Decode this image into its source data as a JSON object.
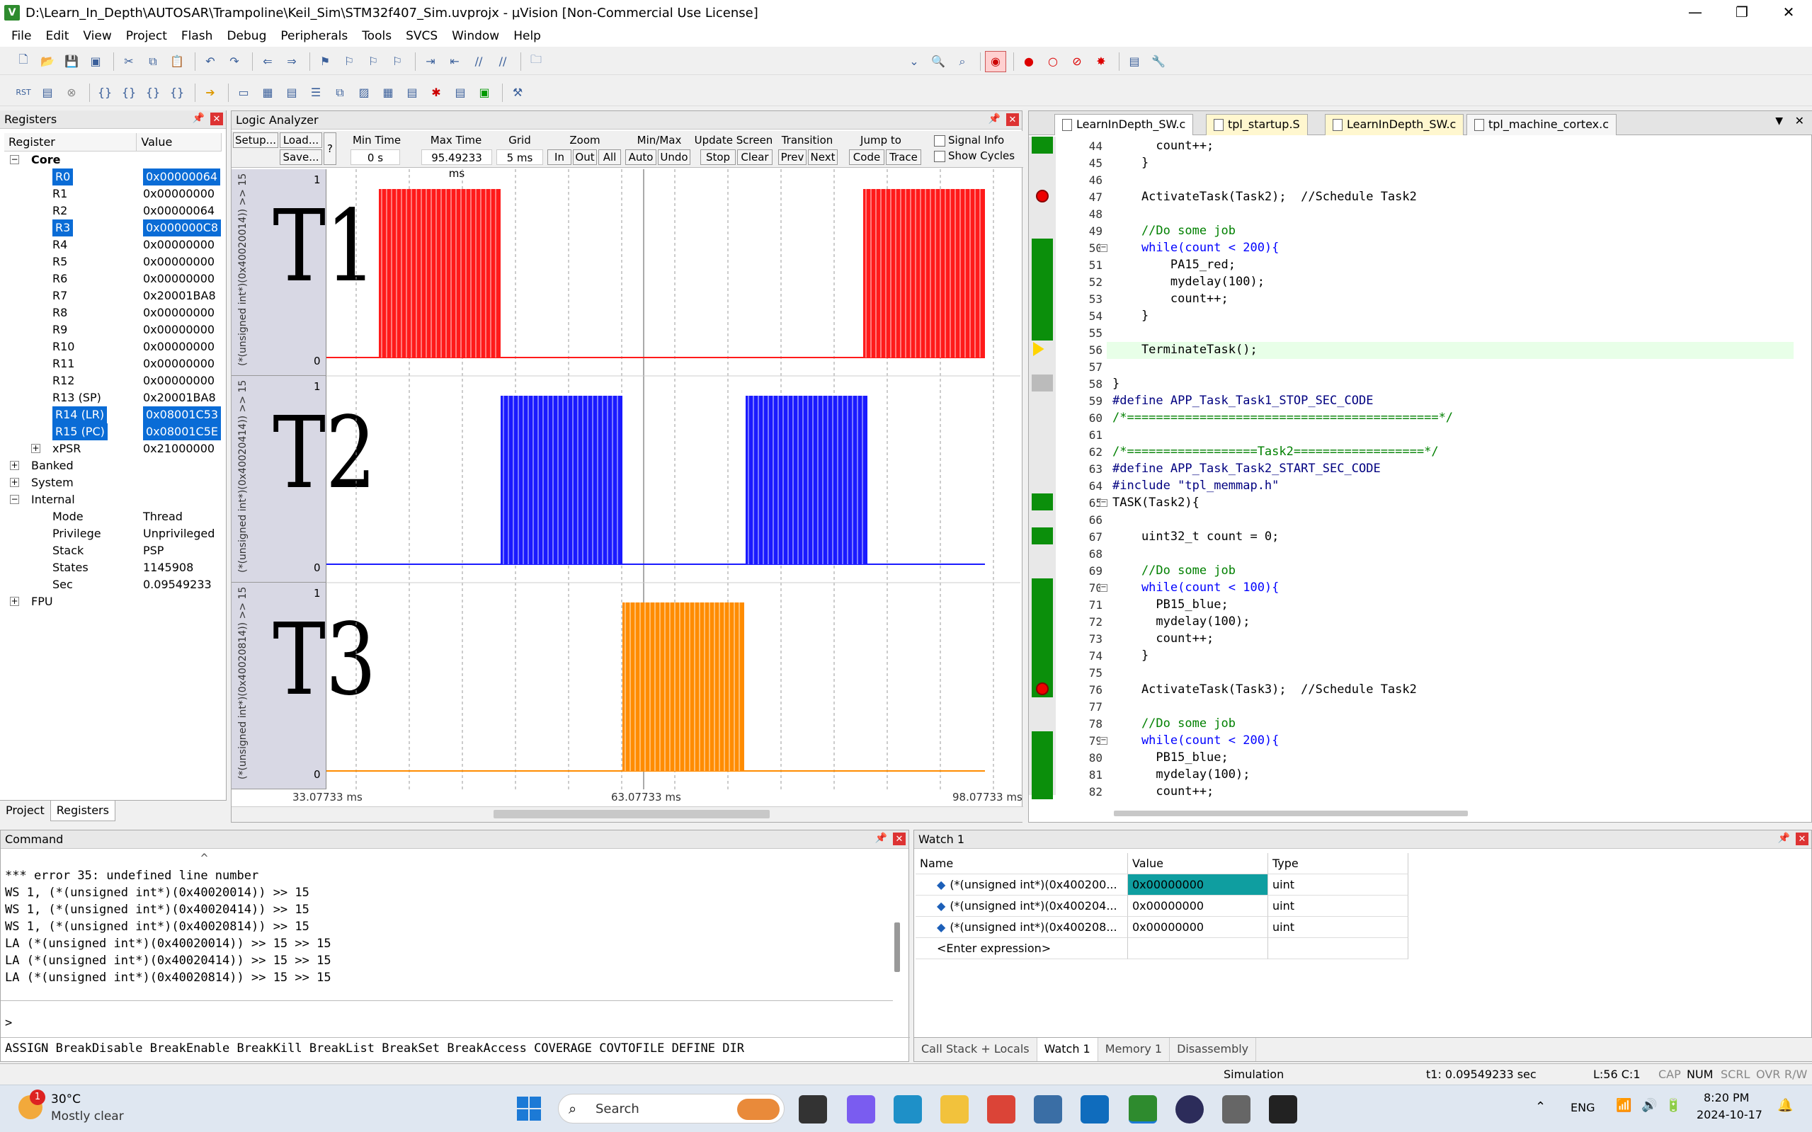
{
  "window": {
    "title": "D:\\Learn_In_Depth\\AUTOSAR\\Trampoline\\Keil_Sim\\STM32f407_Sim.uvprojx - µVision  [Non-Commercial Use License]",
    "minimize": "—",
    "maximize": "❐",
    "close": "✕"
  },
  "menu": [
    "File",
    "Edit",
    "View",
    "Project",
    "Flash",
    "Debug",
    "Peripherals",
    "Tools",
    "SVCS",
    "Window",
    "Help"
  ],
  "registers": {
    "title": "Registers",
    "col_register": "Register",
    "col_value": "Value",
    "core_label": "Core",
    "rows": [
      {
        "name": "R0",
        "value": "0x00000064",
        "selected": true
      },
      {
        "name": "R1",
        "value": "0x00000000",
        "selected": false
      },
      {
        "name": "R2",
        "value": "0x00000064",
        "selected": false
      },
      {
        "name": "R3",
        "value": "0x000000C8",
        "selected": true
      },
      {
        "name": "R4",
        "value": "0x00000000",
        "selected": false
      },
      {
        "name": "R5",
        "value": "0x00000000",
        "selected": false
      },
      {
        "name": "R6",
        "value": "0x00000000",
        "selected": false
      },
      {
        "name": "R7",
        "value": "0x20001BA8",
        "selected": false
      },
      {
        "name": "R8",
        "value": "0x00000000",
        "selected": false
      },
      {
        "name": "R9",
        "value": "0x00000000",
        "selected": false
      },
      {
        "name": "R10",
        "value": "0x00000000",
        "selected": false
      },
      {
        "name": "R11",
        "value": "0x00000000",
        "selected": false
      },
      {
        "name": "R12",
        "value": "0x00000000",
        "selected": false
      },
      {
        "name": "R13 (SP)",
        "value": "0x20001BA8",
        "selected": false
      },
      {
        "name": "R14 (LR)",
        "value": "0x08001C53",
        "selected": true
      },
      {
        "name": "R15 (PC)",
        "value": "0x08001C5E",
        "selected": true
      },
      {
        "name": "xPSR",
        "value": "0x21000000",
        "selected": false
      }
    ],
    "groups": [
      "Banked",
      "System",
      "Internal"
    ],
    "internal": [
      {
        "name": "Mode",
        "value": "Thread"
      },
      {
        "name": "Privilege",
        "value": "Unprivileged"
      },
      {
        "name": "Stack",
        "value": "PSP"
      },
      {
        "name": "States",
        "value": "1145908"
      },
      {
        "name": "Sec",
        "value": "0.09549233"
      }
    ],
    "fpu_label": "FPU",
    "tab_project": "Project",
    "tab_registers": "Registers"
  },
  "logic_analyzer": {
    "title": "Logic Analyzer",
    "setup": "Setup...",
    "load": "Load...",
    "save": "Save...",
    "help": "?",
    "min_time_label": "Min Time",
    "min_time": "0 s",
    "max_time_label": "Max Time",
    "max_time": "95.49233 ms",
    "grid_label": "Grid",
    "grid": "5 ms",
    "zoom_label": "Zoom",
    "zoom_in": "In",
    "zoom_out": "Out",
    "zoom_all": "All",
    "minmax_label": "Min/Max",
    "auto": "Auto",
    "undo": "Undo",
    "update_label": "Update Screen",
    "stop": "Stop",
    "clear": "Clear",
    "transition_label": "Transition",
    "prev": "Prev",
    "next": "Next",
    "jump_label": "Jump to",
    "code": "Code",
    "trace": "Trace",
    "signal_info": "Signal Info",
    "show_cycles": "Show Cycles",
    "signals": [
      {
        "label": "(*(unsigned int*)(0x40020014)) >> 15",
        "color": "#ff1a1a",
        "hi": "1",
        "lo": "0",
        "handwritten": "T1"
      },
      {
        "label": "(*(unsigned int*)(0x40020414)) >> 15",
        "color": "#1a1aff",
        "hi": "1",
        "lo": "0",
        "handwritten": "T2"
      },
      {
        "label": "(*(unsigned int*)(0x40020814)) >> 15",
        "color": "#ff8c00",
        "hi": "1",
        "lo": "0",
        "handwritten": "T3"
      }
    ],
    "axis_left": "33.07733 ms",
    "axis_mid": "63.07733 ms",
    "axis_right": "98.07733 ms"
  },
  "editor": {
    "tabs": [
      {
        "label": "LearnInDepth_SW.c",
        "active": true,
        "yellow": false
      },
      {
        "label": "tpl_startup.S",
        "active": false,
        "yellow": true
      },
      {
        "label": "LearnInDepth_SW.c",
        "active": false,
        "yellow": true
      },
      {
        "label": "tpl_machine_cortex.c",
        "active": false,
        "yellow": false
      }
    ],
    "lines": [
      {
        "n": "44",
        "t": "      count++;"
      },
      {
        "n": "45",
        "t": "    }"
      },
      {
        "n": "46",
        "t": ""
      },
      {
        "n": "47",
        "t": "    ActivateTask(Task2);  //Schedule Task2"
      },
      {
        "n": "48",
        "t": ""
      },
      {
        "n": "49",
        "t": "    //Do some job"
      },
      {
        "n": "50",
        "t": "    while(count < 200){"
      },
      {
        "n": "51",
        "t": "        PA15_red;"
      },
      {
        "n": "52",
        "t": "        mydelay(100);"
      },
      {
        "n": "53",
        "t": "        count++;"
      },
      {
        "n": "54",
        "t": "    }"
      },
      {
        "n": "55",
        "t": ""
      },
      {
        "n": "56",
        "t": "    TerminateTask();"
      },
      {
        "n": "57",
        "t": ""
      },
      {
        "n": "58",
        "t": "}"
      },
      {
        "n": "59",
        "t": "#define APP_Task_Task1_STOP_SEC_CODE"
      },
      {
        "n": "60",
        "t": "/*===========================================*/"
      },
      {
        "n": "61",
        "t": ""
      },
      {
        "n": "62",
        "t": "/*==================Task2==================*/"
      },
      {
        "n": "63",
        "t": "#define APP_Task_Task2_START_SEC_CODE"
      },
      {
        "n": "64",
        "t": "#include \"tpl_memmap.h\""
      },
      {
        "n": "65",
        "t": "TASK(Task2){"
      },
      {
        "n": "66",
        "t": ""
      },
      {
        "n": "67",
        "t": "    uint32_t count = 0;"
      },
      {
        "n": "68",
        "t": ""
      },
      {
        "n": "69",
        "t": "    //Do some job"
      },
      {
        "n": "70",
        "t": "    while(count < 100){"
      },
      {
        "n": "71",
        "t": "      PB15_blue;"
      },
      {
        "n": "72",
        "t": "      mydelay(100);"
      },
      {
        "n": "73",
        "t": "      count++;"
      },
      {
        "n": "74",
        "t": "    }"
      },
      {
        "n": "75",
        "t": ""
      },
      {
        "n": "76",
        "t": "    ActivateTask(Task3);  //Schedule Task2"
      },
      {
        "n": "77",
        "t": ""
      },
      {
        "n": "78",
        "t": "    //Do some job"
      },
      {
        "n": "79",
        "t": "    while(count < 200){"
      },
      {
        "n": "80",
        "t": "      PB15_blue;"
      },
      {
        "n": "81",
        "t": "      mydelay(100);"
      },
      {
        "n": "82",
        "t": "      count++;"
      }
    ]
  },
  "command": {
    "title": "Command",
    "caret_line": "                           ^",
    "lines": [
      "*** error 35: undefined line number",
      "WS 1, (*(unsigned int*)(0x40020014)) >> 15",
      "WS 1, (*(unsigned int*)(0x40020414)) >> 15",
      "WS 1, (*(unsigned int*)(0x40020814)) >> 15",
      "LA (*(unsigned int*)(0x40020014)) >> 15 >> 15",
      "LA (*(unsigned int*)(0x40020414)) >> 15 >> 15",
      "LA (*(unsigned int*)(0x40020814)) >> 15 >> 15"
    ],
    "prompt": ">",
    "hint": "ASSIGN BreakDisable BreakEnable BreakKill BreakList BreakSet BreakAccess COVERAGE COVTOFILE DEFINE DIR"
  },
  "watch": {
    "title": "Watch 1",
    "col_name": "Name",
    "col_value": "Value",
    "col_type": "Type",
    "rows": [
      {
        "name": "(*(unsigned int*)(0x400200...",
        "value": "0x00000000",
        "type": "uint"
      },
      {
        "name": "(*(unsigned int*)(0x400204...",
        "value": "0x00000000",
        "type": "uint"
      },
      {
        "name": "(*(unsigned int*)(0x400208...",
        "value": "0x00000000",
        "type": "uint"
      }
    ],
    "enter": "<Enter expression>",
    "tabs": [
      "Call Stack + Locals",
      "Watch 1",
      "Memory 1",
      "Disassembly"
    ]
  },
  "status": {
    "mode": "Simulation",
    "time": "t1: 0.09549233 sec",
    "pos": "L:56 C:1",
    "caps": "CAP",
    "num": "NUM",
    "scrl": "SCRL",
    "ovr": "OVR",
    "rw": "R/W"
  },
  "taskbar": {
    "weather_temp": "30°C",
    "weather_desc": "Mostly clear",
    "weather_badge": "1",
    "search": "Search",
    "lang": "ENG",
    "time": "8:20 PM",
    "date": "2024-10-17"
  }
}
